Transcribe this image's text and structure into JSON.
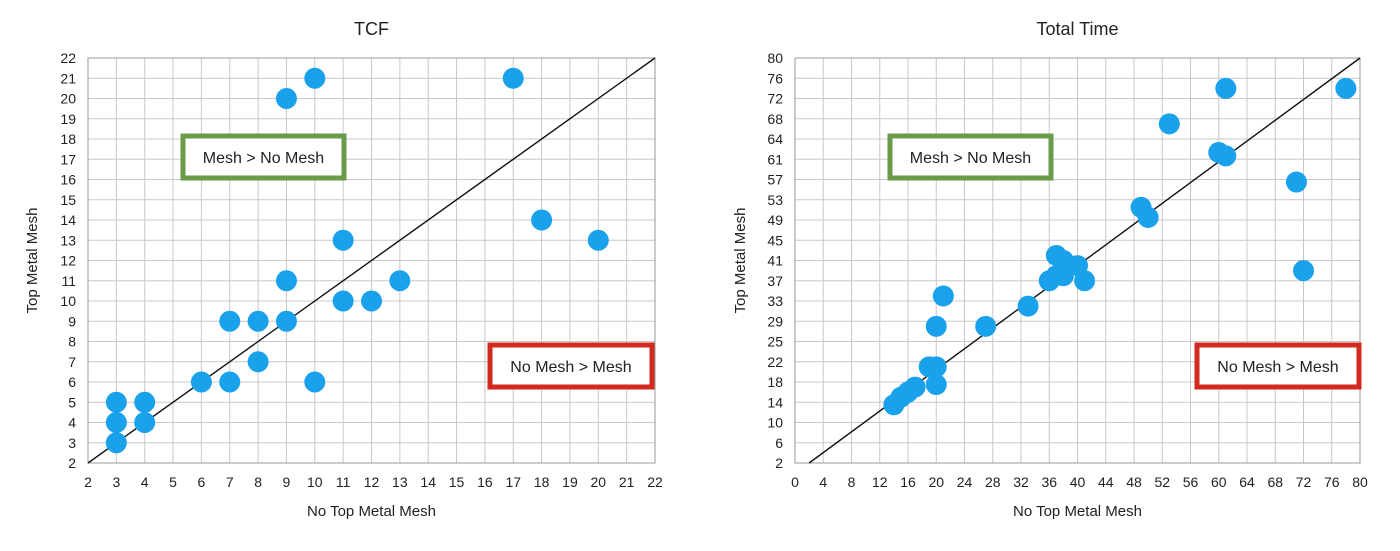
{
  "chart_data": [
    {
      "type": "scatter",
      "title": "TCF",
      "xlabel": "No Top Metal Mesh",
      "ylabel": "Top Metal Mesh",
      "xlim": [
        2,
        22
      ],
      "ylim": [
        2,
        22
      ],
      "x_ticks": [
        2,
        3,
        4,
        5,
        6,
        7,
        8,
        9,
        10,
        11,
        12,
        13,
        14,
        15,
        16,
        17,
        18,
        19,
        20,
        21,
        22
      ],
      "y_ticks": [
        2,
        3,
        4,
        5,
        6,
        7,
        8,
        9,
        10,
        11,
        12,
        13,
        14,
        15,
        16,
        17,
        18,
        19,
        20,
        21,
        22
      ],
      "grid": true,
      "reference_line": "y = x",
      "point_color": "#1aa1ec",
      "points": [
        [
          3,
          3
        ],
        [
          3,
          4
        ],
        [
          3,
          5
        ],
        [
          4,
          4
        ],
        [
          4,
          5
        ],
        [
          6,
          6
        ],
        [
          7,
          6
        ],
        [
          7,
          9
        ],
        [
          8,
          7
        ],
        [
          8,
          9
        ],
        [
          9,
          9
        ],
        [
          9,
          11
        ],
        [
          9,
          20
        ],
        [
          10,
          6
        ],
        [
          10,
          21
        ],
        [
          11,
          10
        ],
        [
          11,
          13
        ],
        [
          12,
          10
        ],
        [
          13,
          11
        ],
        [
          17,
          21
        ],
        [
          18,
          14
        ],
        [
          20,
          13
        ]
      ],
      "annotations": [
        {
          "text": "Mesh > No Mesh",
          "border_color": "#6a9a4a"
        },
        {
          "text": "No Mesh > Mesh",
          "border_color": "#d22a1e"
        }
      ]
    },
    {
      "type": "scatter",
      "title": "Total Time",
      "xlabel": "No Top Metal Mesh",
      "ylabel": "Top Metal Mesh",
      "xlim": [
        0,
        80
      ],
      "ylim": [
        2,
        80
      ],
      "x_ticks": [
        0,
        4,
        8,
        12,
        16,
        20,
        24,
        28,
        32,
        36,
        40,
        44,
        48,
        52,
        56,
        60,
        64,
        68,
        72,
        76,
        80
      ],
      "y_ticks": [
        2,
        6,
        10,
        14,
        18,
        22,
        25,
        29,
        33,
        37,
        41,
        45,
        49,
        53,
        57,
        61,
        64,
        68,
        72,
        76,
        80
      ],
      "grid": true,
      "reference_line": "y = x",
      "point_color": "#1aa1ec",
      "points": [
        [
          14,
          13.5
        ],
        [
          15,
          15
        ],
        [
          16,
          16
        ],
        [
          17,
          17
        ],
        [
          19,
          21
        ],
        [
          20,
          17.5
        ],
        [
          20,
          21
        ],
        [
          20,
          28
        ],
        [
          21,
          34
        ],
        [
          27,
          28
        ],
        [
          33,
          32
        ],
        [
          36,
          37
        ],
        [
          37,
          38
        ],
        [
          37,
          42
        ],
        [
          38,
          41
        ],
        [
          38,
          38
        ],
        [
          40,
          40
        ],
        [
          41,
          37
        ],
        [
          49,
          51.5
        ],
        [
          50,
          49.5
        ],
        [
          53,
          67
        ],
        [
          60,
          62
        ],
        [
          61,
          61.5
        ],
        [
          61,
          74
        ],
        [
          71,
          56.5
        ],
        [
          72,
          39
        ],
        [
          78,
          74
        ]
      ],
      "annotations": [
        {
          "text": "Mesh > No Mesh",
          "border_color": "#6a9a4a"
        },
        {
          "text": "No Mesh > Mesh",
          "border_color": "#d22a1e"
        }
      ]
    }
  ]
}
